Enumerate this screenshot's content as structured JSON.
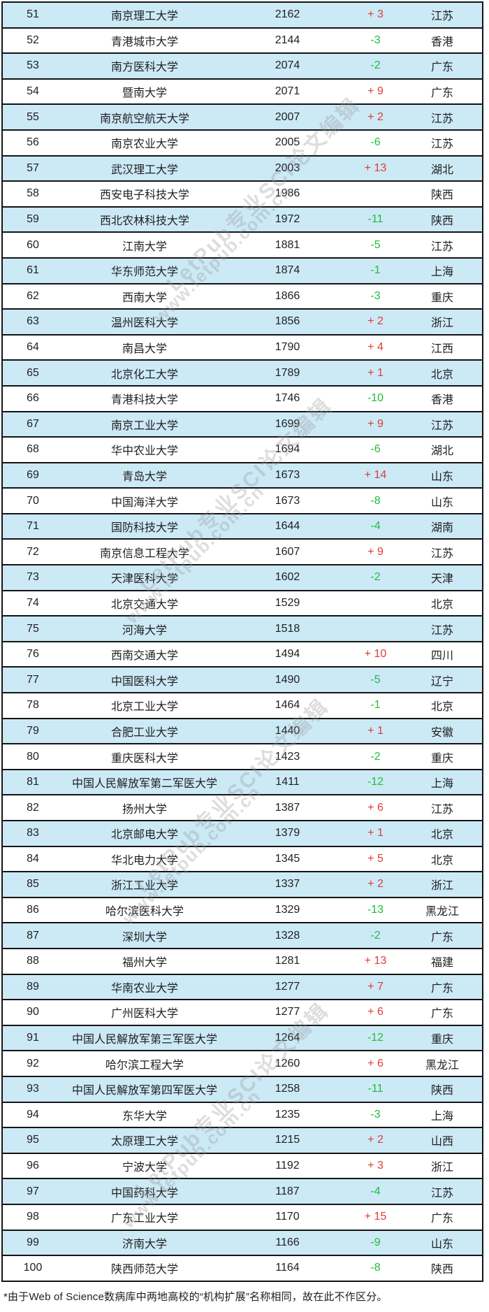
{
  "chart_data": {
    "type": "table",
    "title": "",
    "columns": [
      "rank",
      "name",
      "count",
      "change",
      "province"
    ],
    "rows": [
      {
        "rank": "51",
        "name": "南京理工大学",
        "count": "2162",
        "change": "+ 3",
        "province": "江苏"
      },
      {
        "rank": "52",
        "name": "青港城市大学",
        "count": "2144",
        "change": "-3",
        "province": "香港"
      },
      {
        "rank": "53",
        "name": "南方医科大学",
        "count": "2074",
        "change": "-2",
        "province": "广东"
      },
      {
        "rank": "54",
        "name": "暨南大学",
        "count": "2071",
        "change": "+ 9",
        "province": "广东"
      },
      {
        "rank": "55",
        "name": "南京航空航天大学",
        "count": "2007",
        "change": "+ 2",
        "province": "江苏"
      },
      {
        "rank": "56",
        "name": "南京农业大学",
        "count": "2005",
        "change": "-6",
        "province": "江苏"
      },
      {
        "rank": "57",
        "name": "武汉理工大学",
        "count": "2003",
        "change": "+ 13",
        "province": "湖北"
      },
      {
        "rank": "58",
        "name": "西安电子科技大学",
        "count": "1986",
        "change": "",
        "province": "陕西"
      },
      {
        "rank": "59",
        "name": "西北农林科技大学",
        "count": "1972",
        "change": "-11",
        "province": "陕西"
      },
      {
        "rank": "60",
        "name": "江南大学",
        "count": "1881",
        "change": "-5",
        "province": "江苏"
      },
      {
        "rank": "61",
        "name": "华东师范大学",
        "count": "1874",
        "change": "-1",
        "province": "上海"
      },
      {
        "rank": "62",
        "name": "西南大学",
        "count": "1866",
        "change": "-3",
        "province": "重庆"
      },
      {
        "rank": "63",
        "name": "温州医科大学",
        "count": "1856",
        "change": "+ 2",
        "province": "浙江"
      },
      {
        "rank": "64",
        "name": "南昌大学",
        "count": "1790",
        "change": "+ 4",
        "province": "江西"
      },
      {
        "rank": "65",
        "name": "北京化工大学",
        "count": "1789",
        "change": "+ 1",
        "province": "北京"
      },
      {
        "rank": "66",
        "name": "青港科技大学",
        "count": "1746",
        "change": "-10",
        "province": "香港"
      },
      {
        "rank": "67",
        "name": "南京工业大学",
        "count": "1699",
        "change": "+ 9",
        "province": "江苏"
      },
      {
        "rank": "68",
        "name": "华中农业大学",
        "count": "1694",
        "change": "-6",
        "province": "湖北"
      },
      {
        "rank": "69",
        "name": "青岛大学",
        "count": "1673",
        "change": "+ 14",
        "province": "山东"
      },
      {
        "rank": "70",
        "name": "中国海洋大学",
        "count": "1673",
        "change": "-8",
        "province": "山东"
      },
      {
        "rank": "71",
        "name": "国防科技大学",
        "count": "1644",
        "change": "-4",
        "province": "湖南"
      },
      {
        "rank": "72",
        "name": "南京信息工程大学",
        "count": "1607",
        "change": "+ 9",
        "province": "江苏"
      },
      {
        "rank": "73",
        "name": "天津医科大学",
        "count": "1602",
        "change": "-2",
        "province": "天津"
      },
      {
        "rank": "74",
        "name": "北京交通大学",
        "count": "1529",
        "change": "",
        "province": "北京"
      },
      {
        "rank": "75",
        "name": "河海大学",
        "count": "1518",
        "change": "",
        "province": "江苏"
      },
      {
        "rank": "76",
        "name": "西南交通大学",
        "count": "1494",
        "change": "+ 10",
        "province": "四川"
      },
      {
        "rank": "77",
        "name": "中国医科大学",
        "count": "1490",
        "change": "-5",
        "province": "辽宁"
      },
      {
        "rank": "78",
        "name": "北京工业大学",
        "count": "1464",
        "change": "-1",
        "province": "北京"
      },
      {
        "rank": "79",
        "name": "合肥工业大学",
        "count": "1440",
        "change": "+ 1",
        "province": "安徽"
      },
      {
        "rank": "80",
        "name": "重庆医科大学",
        "count": "1423",
        "change": "-2",
        "province": "重庆"
      },
      {
        "rank": "81",
        "name": "中国人民解放军第二军医大学",
        "count": "1411",
        "change": "-12",
        "province": "上海"
      },
      {
        "rank": "82",
        "name": "扬州大学",
        "count": "1387",
        "change": "+ 6",
        "province": "江苏"
      },
      {
        "rank": "83",
        "name": "北京邮电大学",
        "count": "1379",
        "change": "+ 1",
        "province": "北京"
      },
      {
        "rank": "84",
        "name": "华北电力大学",
        "count": "1345",
        "change": "+ 5",
        "province": "北京"
      },
      {
        "rank": "85",
        "name": "浙江工业大学",
        "count": "1337",
        "change": "+ 2",
        "province": "浙江"
      },
      {
        "rank": "86",
        "name": "哈尔滨医科大学",
        "count": "1329",
        "change": "-13",
        "province": "黑龙江"
      },
      {
        "rank": "87",
        "name": "深圳大学",
        "count": "1328",
        "change": "-2",
        "province": "广东"
      },
      {
        "rank": "88",
        "name": "福州大学",
        "count": "1281",
        "change": "+ 13",
        "province": "福建"
      },
      {
        "rank": "89",
        "name": "华南农业大学",
        "count": "1277",
        "change": "+ 7",
        "province": "广东"
      },
      {
        "rank": "90",
        "name": "广州医科大学",
        "count": "1277",
        "change": "+ 6",
        "province": "广东"
      },
      {
        "rank": "91",
        "name": "中国人民解放军第三军医大学",
        "count": "1264",
        "change": "-12",
        "province": "重庆"
      },
      {
        "rank": "92",
        "name": "哈尔滨工程大学",
        "count": "1260",
        "change": "+ 6",
        "province": "黑龙江"
      },
      {
        "rank": "93",
        "name": "中国人民解放军第四军医大学",
        "count": "1258",
        "change": "-11",
        "province": "陕西"
      },
      {
        "rank": "94",
        "name": "东华大学",
        "count": "1235",
        "change": "-3",
        "province": "上海"
      },
      {
        "rank": "95",
        "name": "太原理工大学",
        "count": "1215",
        "change": "+ 2",
        "province": "山西"
      },
      {
        "rank": "96",
        "name": "宁波大学",
        "count": "1192",
        "change": "+ 3",
        "province": "浙江"
      },
      {
        "rank": "97",
        "name": "中国药科大学",
        "count": "1187",
        "change": "-4",
        "province": "江苏"
      },
      {
        "rank": "98",
        "name": "广东工业大学",
        "count": "1170",
        "change": "+ 15",
        "province": "广东"
      },
      {
        "rank": "99",
        "name": "济南大学",
        "count": "1166",
        "change": "-9",
        "province": "山东"
      },
      {
        "rank": "100",
        "name": "陕西师范大学",
        "count": "1164",
        "change": "-8",
        "province": "陕西"
      }
    ],
    "layout": {
      "grid": "horizontal-rules-only",
      "alternating_row_highlight": "odd-ranks"
    }
  },
  "footnote": "*由于Web of Science数病库中两地高校的“机构扩展”名称相同，故在此不作区分。",
  "watermark": {
    "line1": "LetPub专业SCI论文编辑",
    "line2": "www.letpub.com.cn"
  },
  "colors": {
    "row_alt_background": "#cce9f6",
    "row_background": "#ffffff",
    "border": "#141414",
    "positive_change": "#e03c31",
    "negative_change": "#1fbe38",
    "text": "#1f1f1f"
  }
}
